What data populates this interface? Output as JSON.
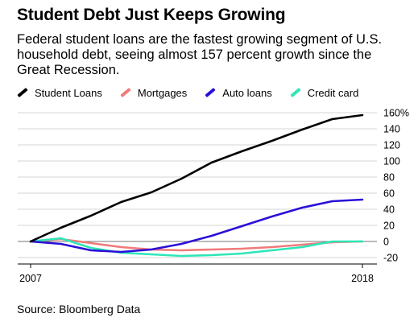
{
  "title": "Student Debt Just Keeps Growing",
  "subtitle": "Federal student loans are the fastest growing segment of U.S. household debt, seeing almost 157 percent growth since the Great Recession.",
  "source": "Source: Bloomberg Data",
  "chart_data": {
    "type": "line",
    "x": [
      2007,
      2008,
      2009,
      2010,
      2011,
      2012,
      2013,
      2014,
      2015,
      2016,
      2017,
      2018
    ],
    "x_tick_labels": [
      "2007",
      "2018"
    ],
    "ylim": [
      -25,
      165
    ],
    "y_ticks": [
      -20,
      0,
      20,
      40,
      60,
      80,
      100,
      120,
      140,
      160
    ],
    "y_tick_labels": [
      "-20",
      "0",
      "20",
      "40",
      "60",
      "80",
      "100",
      "120",
      "140",
      "160%"
    ],
    "grid": true,
    "legend_position": "top",
    "series": [
      {
        "name": "Student Loans",
        "color": "#000000",
        "values": [
          0,
          17,
          32,
          49,
          61,
          78,
          98,
          112,
          125,
          139,
          152,
          157
        ]
      },
      {
        "name": "Mortgages",
        "color": "#f07a7a",
        "values": [
          0,
          3,
          -2,
          -7,
          -10,
          -11,
          -10,
          -9,
          -7,
          -4,
          -1,
          0
        ]
      },
      {
        "name": "Auto loans",
        "color": "#2a0fd8",
        "values": [
          0,
          -3,
          -11,
          -13,
          -10,
          -3,
          7,
          19,
          31,
          42,
          50,
          52
        ]
      },
      {
        "name": "Credit card",
        "color": "#2ee6b8",
        "values": [
          0,
          4,
          -8,
          -14,
          -16,
          -18,
          -17,
          -15,
          -11,
          -7,
          0,
          0
        ]
      }
    ]
  }
}
